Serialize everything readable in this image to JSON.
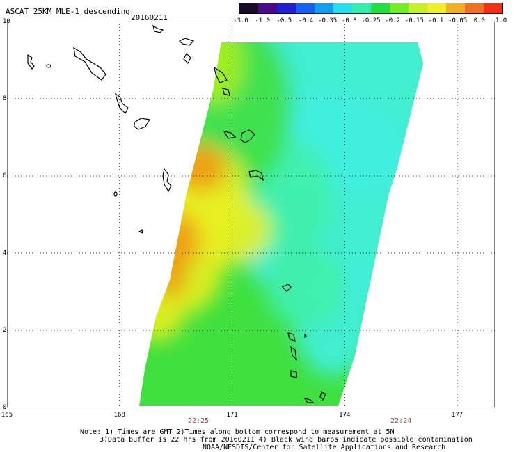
{
  "header": {
    "title": "ASCAT 25KM MLE-1 descending",
    "date": "20160211"
  },
  "colorbar": {
    "labels": [
      "-3.0",
      "-1.0",
      "-0.5",
      "-0.4",
      "-0.35",
      "-0.3",
      "-0.25",
      "-0.2",
      "-0.15",
      "-0.1",
      "-0.05",
      "0.0",
      "1.0"
    ],
    "colors": [
      "#1a0a2a",
      "#4b0a8a",
      "#2020d0",
      "#1560f0",
      "#10a0f0",
      "#20e0f0",
      "#30f0b0",
      "#20e040",
      "#70f020",
      "#c8f020",
      "#f0f020",
      "#f0b020",
      "#f07020",
      "#f03010"
    ]
  },
  "map": {
    "x_labels": [
      "165",
      "168",
      "171",
      "174",
      "177"
    ],
    "y_labels": [
      "0",
      "2",
      "4",
      "6",
      "8",
      "10"
    ],
    "time_labels": [
      {
        "text": "22:25",
        "lon": 170.1
      },
      {
        "text": "22:24",
        "lon": 175.5
      }
    ],
    "lon_range": [
      165,
      178
    ],
    "lat_range": [
      0,
      10
    ],
    "swath_colors": {
      "orange": "#f09a18",
      "yellow": "#e8f020",
      "lightgreen": "#a8f020",
      "green": "#40e040",
      "aquagreen": "#40f0a8",
      "cyan": "#40f0e0"
    }
  },
  "notes": {
    "line1": "Note: 1) Times are GMT 2)Times along bottom correspond to measurement at 5N",
    "line2": "3)Data buffer is 22 hrs from 20160211 4) Black wind barbs indicate possible contamination",
    "line3": "NOAA/NESDIS/Center for Satellite Applications and Research"
  }
}
